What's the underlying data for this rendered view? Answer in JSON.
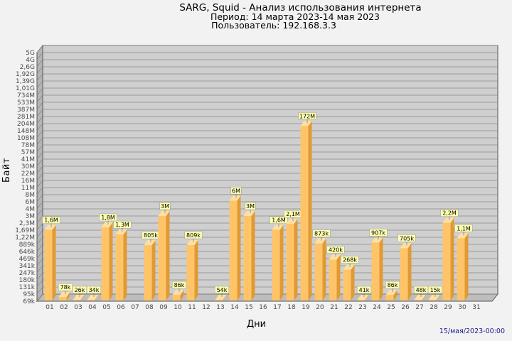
{
  "header": {
    "title": "SARG, Squid - Анализ использования интернета",
    "period": "Период: 14 марта 2023-14 мая 2023",
    "user": "Пользователь: 192.168.3.3"
  },
  "footer": {
    "timestamp": "15/мая/2023-00:00"
  },
  "colors": {
    "bar_front": "#ffc468",
    "bar_side": "#e09a35",
    "bar_top": "#ffe0a0",
    "plot_bg": "#cfcfcf",
    "label_bg": "#ffffb0"
  },
  "chart_data": {
    "type": "bar",
    "title": "",
    "xlabel": "Дни",
    "ylabel": "Байт",
    "y_scale": "log",
    "yticks": [
      "5G",
      "4G",
      "2,6G",
      "1,92G",
      "1,39G",
      "1,01G",
      "734M",
      "533M",
      "387M",
      "281M",
      "204M",
      "148M",
      "108M",
      "78M",
      "57M",
      "41M",
      "30M",
      "22M",
      "16M",
      "11M",
      "8M",
      "6M",
      "4M",
      "3M",
      "2,3M",
      "1,69M",
      "1,22M",
      "889k",
      "646k",
      "469k",
      "341k",
      "247k",
      "180k",
      "131k",
      "95k",
      "69k"
    ],
    "categories": [
      "01",
      "02",
      "03",
      "04",
      "05",
      "06",
      "07",
      "08",
      "09",
      "10",
      "11",
      "12",
      "13",
      "14",
      "15",
      "16",
      "17",
      "18",
      "19",
      "20",
      "21",
      "22",
      "23",
      "24",
      "25",
      "26",
      "27",
      "28",
      "29",
      "30",
      "31"
    ],
    "values": [
      1600000,
      78000,
      26000,
      34000,
      1800000,
      1300000,
      null,
      805000,
      3000000,
      86000,
      809000,
      null,
      54000,
      6000000,
      3000000,
      null,
      1600000,
      2100000,
      172000000,
      873000,
      420000,
      268000,
      41000,
      907000,
      86000,
      705000,
      48000,
      15000,
      2200000,
      1100000,
      null
    ],
    "labels": [
      "1,6M",
      "78k",
      "26k",
      "34k",
      "1,8M",
      "1,3M",
      "",
      "805k",
      "3M",
      "86k",
      "809k",
      "",
      "54k",
      "6M",
      "3M",
      "",
      "1,6M",
      "2,1M",
      "172M",
      "873k",
      "420k",
      "268k",
      "41k",
      "907k",
      "86k",
      "705k",
      "48k",
      "15k",
      "2,2M",
      "1,1M",
      ""
    ],
    "grid": true,
    "legend": "none"
  }
}
